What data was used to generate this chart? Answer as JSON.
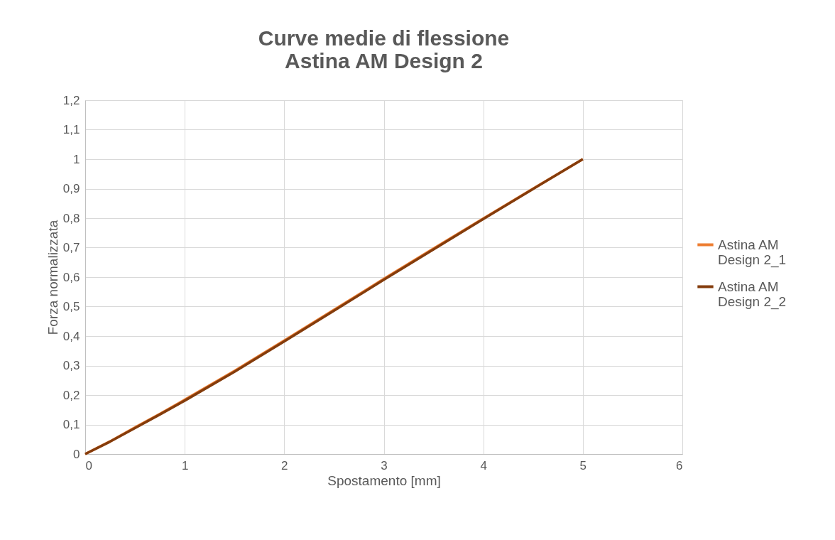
{
  "chart_data": {
    "type": "line",
    "title": [
      "Curve medie di flessione",
      "Astina AM Design 2"
    ],
    "xlabel": "Spostamento [mm]",
    "ylabel": "Forza normalizzata",
    "xlim": [
      0,
      6
    ],
    "xticks": [
      0,
      1,
      2,
      3,
      4,
      5,
      6
    ],
    "ylim": [
      0,
      1.2
    ],
    "yticks": [
      {
        "value": 0,
        "label": "0"
      },
      {
        "value": 0.1,
        "label": "0,1"
      },
      {
        "value": 0.2,
        "label": "0,2"
      },
      {
        "value": 0.3,
        "label": "0,3"
      },
      {
        "value": 0.4,
        "label": "0,4"
      },
      {
        "value": 0.5,
        "label": "0,5"
      },
      {
        "value": 0.6,
        "label": "0,6"
      },
      {
        "value": 0.7,
        "label": "0,7"
      },
      {
        "value": 0.8,
        "label": "0,8"
      },
      {
        "value": 0.9,
        "label": "0,9"
      },
      {
        "value": 1,
        "label": "1"
      },
      {
        "value": 1.1,
        "label": "1,1"
      },
      {
        "value": 1.2,
        "label": "1,2"
      }
    ],
    "x": [
      0,
      0.25,
      0.5,
      0.75,
      1,
      1.5,
      2,
      2.5,
      3,
      3.5,
      4,
      4.5,
      5
    ],
    "series": [
      {
        "name": "Astina AM Design 2_1",
        "color": "#ed7d31",
        "values": [
          0,
          0.043,
          0.09,
          0.136,
          0.184,
          0.282,
          0.385,
          0.489,
          0.594,
          0.697,
          0.799,
          0.9,
          1
        ]
      },
      {
        "name": "Astina AM Design 2_2",
        "color": "#843c0c",
        "values": [
          0,
          0.042,
          0.088,
          0.134,
          0.181,
          0.279,
          0.382,
          0.486,
          0.591,
          0.694,
          0.797,
          0.899,
          1
        ]
      }
    ],
    "grid": true,
    "legend": "right",
    "marker": "none",
    "line_style": "solid"
  }
}
